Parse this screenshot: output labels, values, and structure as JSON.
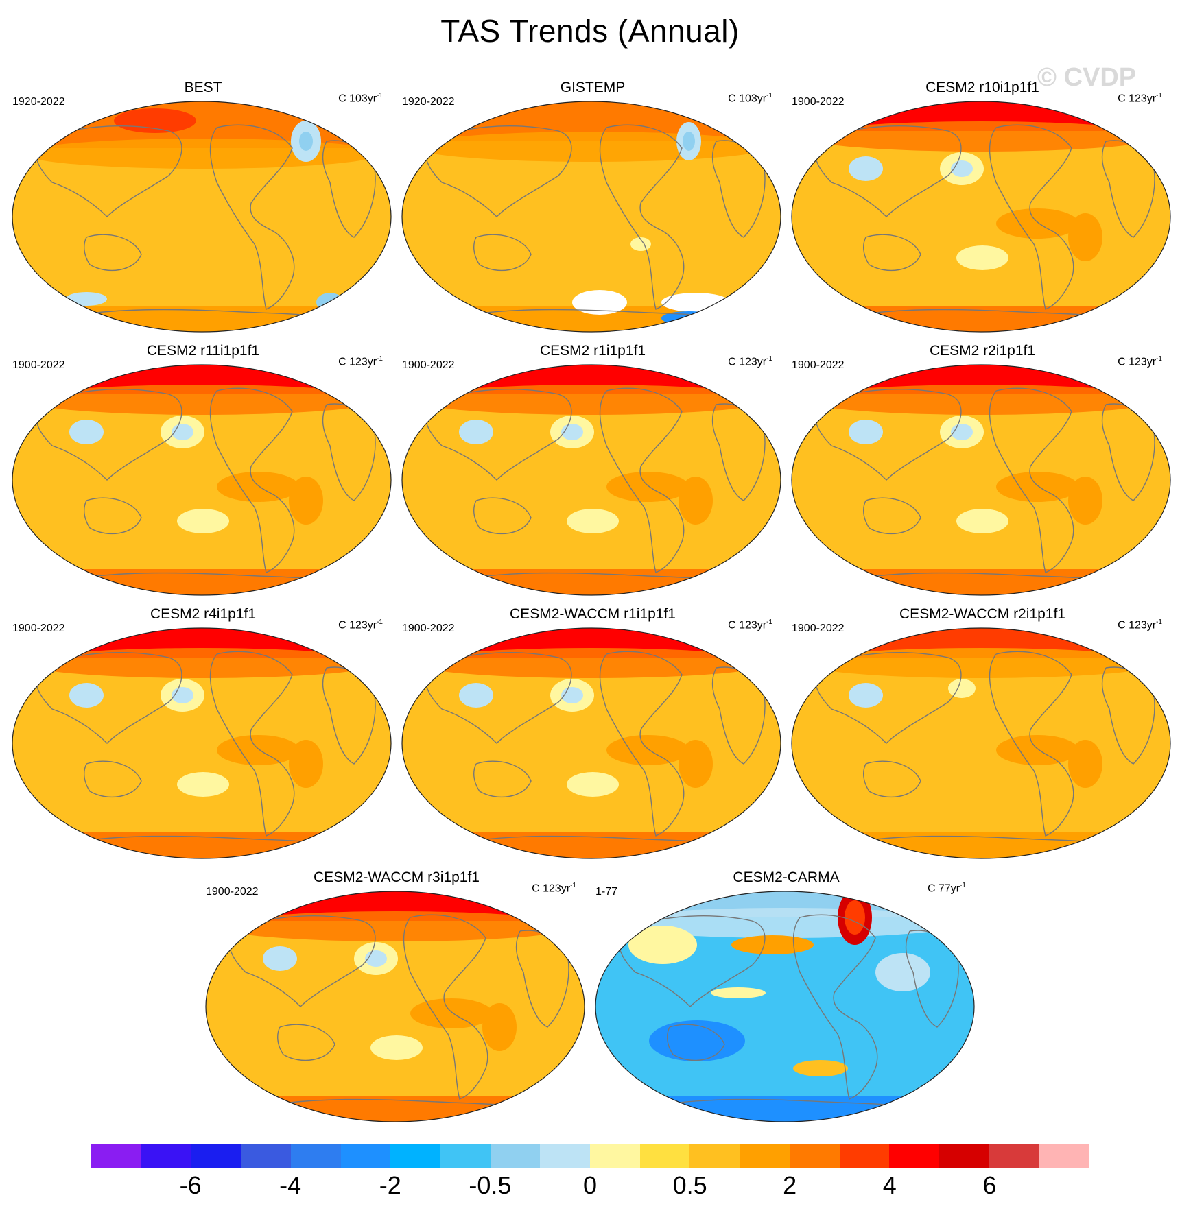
{
  "title": "TAS Trends (Annual)",
  "watermark": "© CVDP",
  "panels": [
    {
      "title": "BEST",
      "period": "1920-2022",
      "units": "C 103yr",
      "units_sup": "-1",
      "style": "best"
    },
    {
      "title": "GISTEMP",
      "period": "1920-2022",
      "units": "C 103yr",
      "units_sup": "-1",
      "style": "gistemp"
    },
    {
      "title": "CESM2 r10i1p1f1",
      "period": "1900-2022",
      "units": "C 123yr",
      "units_sup": "-1",
      "style": "model-hot"
    },
    {
      "title": "CESM2 r11i1p1f1",
      "period": "1900-2022",
      "units": "C 123yr",
      "units_sup": "-1",
      "style": "model-hot"
    },
    {
      "title": "CESM2 r1i1p1f1",
      "period": "1900-2022",
      "units": "C 123yr",
      "units_sup": "-1",
      "style": "model-hot"
    },
    {
      "title": "CESM2 r2i1p1f1",
      "period": "1900-2022",
      "units": "C 123yr",
      "units_sup": "-1",
      "style": "model-hot"
    },
    {
      "title": "CESM2 r4i1p1f1",
      "period": "1900-2022",
      "units": "C 123yr",
      "units_sup": "-1",
      "style": "model-hot"
    },
    {
      "title": "CESM2-WACCM r1i1p1f1",
      "period": "1900-2022",
      "units": "C 123yr",
      "units_sup": "-1",
      "style": "model-hot"
    },
    {
      "title": "CESM2-WACCM r2i1p1f1",
      "period": "1900-2022",
      "units": "C 123yr",
      "units_sup": "-1",
      "style": "model"
    },
    {
      "title": "CESM2-WACCM r3i1p1f1",
      "period": "1900-2022",
      "units": "C 123yr",
      "units_sup": "-1",
      "style": "model-hot"
    },
    {
      "title": "CESM2-CARMA",
      "period": "1-77",
      "units": "C 77yr",
      "units_sup": "-1",
      "style": "cool"
    }
  ],
  "colorbar": {
    "colors": [
      "#8a1df2",
      "#3a12f5",
      "#1a1ef0",
      "#3a5ae0",
      "#2e7df0",
      "#1e90ff",
      "#00b2ff",
      "#40c4f5",
      "#90d0f0",
      "#bde3f5",
      "#fff7a0",
      "#ffe040",
      "#ffc020",
      "#ffa000",
      "#ff7a00",
      "#ff3c00",
      "#ff0000",
      "#d60000",
      "#d83a3a",
      "#ffb4b4"
    ],
    "labels": [
      {
        "text": "-6",
        "index": 2
      },
      {
        "text": "-4",
        "index": 4
      },
      {
        "text": "-2",
        "index": 6
      },
      {
        "text": "-0.5",
        "index": 8
      },
      {
        "text": "0",
        "index": 10
      },
      {
        "text": "0.5",
        "index": 12
      },
      {
        "text": "2",
        "index": 14
      },
      {
        "text": "4",
        "index": 16
      },
      {
        "text": "6",
        "index": 18
      }
    ]
  }
}
